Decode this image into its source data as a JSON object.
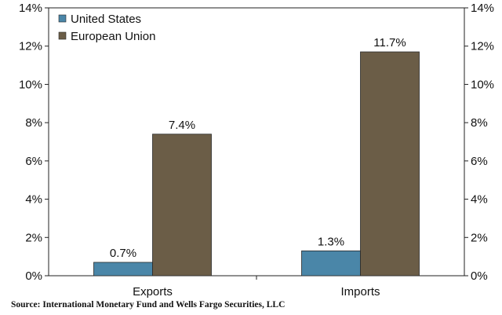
{
  "chart_data": {
    "type": "bar",
    "categories": [
      "Exports",
      "Imports"
    ],
    "series": [
      {
        "name": "United States",
        "values": [
          0.7,
          1.3
        ],
        "labels": [
          "0.7%",
          "1.3%"
        ],
        "color": "#4a86a8"
      },
      {
        "name": "European Union",
        "values": [
          7.4,
          11.7
        ],
        "labels": [
          "7.4%",
          "11.7%"
        ],
        "color": "#6b5d47"
      }
    ],
    "ylim": [
      0,
      14
    ],
    "yticks": [
      0,
      2,
      4,
      6,
      8,
      10,
      12,
      14
    ],
    "ytick_labels": [
      "0%",
      "2%",
      "4%",
      "6%",
      "8%",
      "10%",
      "12%",
      "14%"
    ],
    "legend": "top-left",
    "grid": false,
    "secondary_axis": true
  },
  "source": "Source:  International Monetary Fund and Wells Fargo Securities, LLC"
}
